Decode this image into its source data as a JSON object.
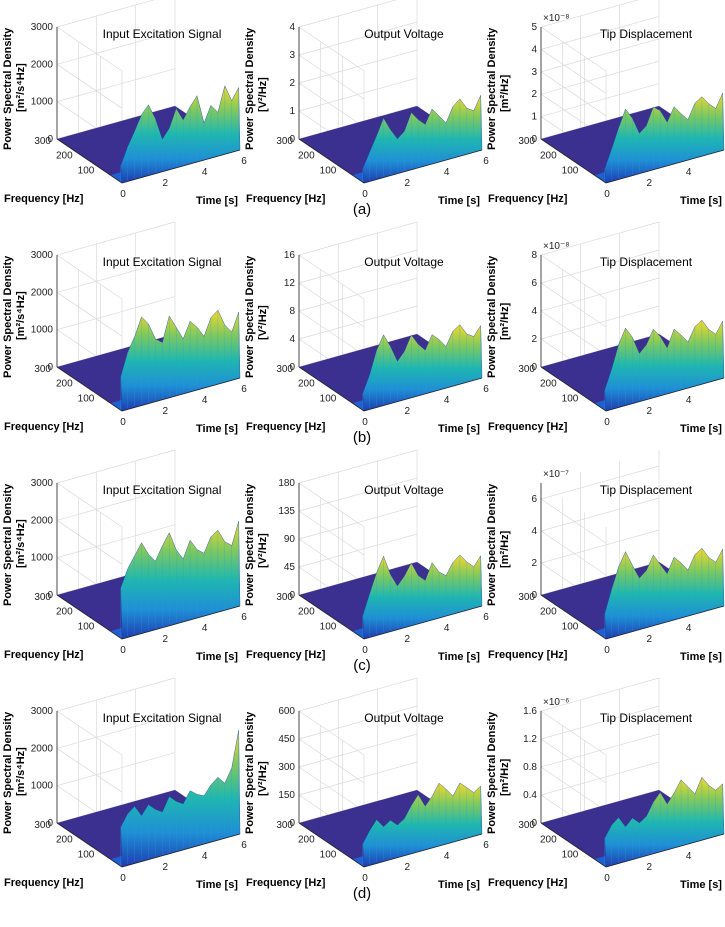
{
  "figure": {
    "panels": [
      {
        "caption": "(a)",
        "charts": [
          {
            "title": "Input Excitation Signal",
            "ylabel_line1": "Power Spectral Density",
            "ylabel_line2": "[m²/s⁴Hz]",
            "multiplier": "",
            "zticks": [
              "0",
              "1000",
              "2000",
              "3000"
            ],
            "zmax": 3000,
            "xlim": [
              0,
              6
            ],
            "ylim": [
              0,
              300
            ],
            "xticks": [
              "2",
              "4",
              "6"
            ],
            "yticks": [
              "0",
              "100",
              "200",
              "300"
            ],
            "xlabel": "Time [s]",
            "ylabel_freq": "Frequency [Hz]",
            "signal_start": 0.0,
            "peaks": [
              0.15,
              0.3,
              0.42,
              0.55,
              0.62,
              0.48,
              0.28,
              0.36,
              0.52,
              0.4,
              0.5,
              0.58,
              0.32,
              0.46,
              0.38,
              0.6,
              0.45,
              0.55
            ]
          },
          {
            "title": "Output Voltage",
            "ylabel_line1": "Power Spectral Density",
            "ylabel_line2": "[V²/Hz]",
            "multiplier": "",
            "zticks": [
              "0",
              "1",
              "2",
              "3",
              "4"
            ],
            "zmax": 4,
            "xlim": [
              0,
              6
            ],
            "ylim": [
              0,
              300
            ],
            "xticks": [
              "2",
              "4",
              "6"
            ],
            "yticks": [
              "0",
              "100",
              "200",
              "300"
            ],
            "xlabel": "Time [s]",
            "ylabel_freq": "Frequency [Hz]",
            "signal_start": 0.0,
            "peaks": [
              0.12,
              0.25,
              0.38,
              0.52,
              0.4,
              0.3,
              0.35,
              0.5,
              0.42,
              0.36,
              0.48,
              0.4,
              0.32,
              0.45,
              0.5,
              0.4,
              0.36,
              0.48
            ]
          },
          {
            "title": "Tip Displacement",
            "ylabel_line1": "Power Spectral Density",
            "ylabel_line2": "[m²/Hz]",
            "multiplier": "×10⁻⁸",
            "zticks": [
              "0",
              "1",
              "2",
              "3",
              "4",
              "5"
            ],
            "zmax": 5,
            "xlim": [
              0,
              6
            ],
            "ylim": [
              0,
              300
            ],
            "xticks": [
              "2",
              "4",
              "6"
            ],
            "yticks": [
              "0",
              "100",
              "200",
              "300"
            ],
            "xlabel": "Time [s]",
            "ylabel_freq": "Frequency [Hz]",
            "signal_start": 0.0,
            "peaks": [
              0.12,
              0.28,
              0.45,
              0.6,
              0.5,
              0.35,
              0.4,
              0.55,
              0.5,
              0.38,
              0.5,
              0.42,
              0.35,
              0.48,
              0.52,
              0.44,
              0.38,
              0.5
            ]
          }
        ]
      },
      {
        "caption": "(b)",
        "charts": [
          {
            "title": "Input Excitation Signal",
            "ylabel_line1": "Power Spectral Density",
            "ylabel_line2": "[m²/s⁴Hz]",
            "multiplier": "",
            "zticks": [
              "0",
              "1000",
              "2000",
              "3000"
            ],
            "zmax": 3000,
            "xlim": [
              0,
              6
            ],
            "ylim": [
              0,
              300
            ],
            "xticks": [
              "2",
              "4",
              "6"
            ],
            "yticks": [
              "0",
              "100",
              "200",
              "300"
            ],
            "xlabel": "Time [s]",
            "ylabel_freq": "Frequency [Hz]",
            "signal_start": 0.0,
            "peaks": [
              0.3,
              0.5,
              0.62,
              0.78,
              0.7,
              0.55,
              0.5,
              0.72,
              0.6,
              0.48,
              0.62,
              0.55,
              0.45,
              0.6,
              0.65,
              0.5,
              0.42,
              0.58
            ]
          },
          {
            "title": "Output Voltage",
            "ylabel_line1": "Power Spectral Density",
            "ylabel_line2": "[V²/Hz]",
            "multiplier": "",
            "zticks": [
              "0",
              "4",
              "8",
              "12",
              "16"
            ],
            "zmax": 16,
            "xlim": [
              0,
              6
            ],
            "ylim": [
              0,
              300
            ],
            "xticks": [
              "2",
              "4",
              "6"
            ],
            "yticks": [
              "0",
              "100",
              "200",
              "300"
            ],
            "xlabel": "Time [s]",
            "ylabel_freq": "Frequency [Hz]",
            "signal_start": 0.0,
            "peaks": [
              0.15,
              0.3,
              0.5,
              0.62,
              0.5,
              0.35,
              0.42,
              0.55,
              0.45,
              0.38,
              0.5,
              0.44,
              0.36,
              0.48,
              0.52,
              0.42,
              0.38,
              0.46
            ]
          },
          {
            "title": "Tip Displacement",
            "ylabel_line1": "Power Spectral Density",
            "ylabel_line2": "[m²/Hz]",
            "multiplier": "×10⁻⁸",
            "zticks": [
              "0",
              "2",
              "4",
              "6",
              "8"
            ],
            "zmax": 8,
            "xlim": [
              0,
              6
            ],
            "ylim": [
              0,
              300
            ],
            "xticks": [
              "2",
              "4",
              "6"
            ],
            "yticks": [
              "0",
              "100",
              "200",
              "300"
            ],
            "xlabel": "Time [s]",
            "ylabel_freq": "Frequency [Hz]",
            "signal_start": 0.0,
            "peaks": [
              0.18,
              0.35,
              0.55,
              0.68,
              0.58,
              0.42,
              0.48,
              0.6,
              0.52,
              0.4,
              0.55,
              0.48,
              0.4,
              0.52,
              0.56,
              0.46,
              0.4,
              0.5
            ]
          }
        ]
      },
      {
        "caption": "(c)",
        "charts": [
          {
            "title": "Input Excitation Signal",
            "ylabel_line1": "Power Spectral Density",
            "ylabel_line2": "[m²/s⁴Hz]",
            "multiplier": "",
            "zticks": [
              "0",
              "1000",
              "2000",
              "3000"
            ],
            "zmax": 3000,
            "xlim": [
              0,
              6
            ],
            "ylim": [
              0,
              300
            ],
            "xticks": [
              "2",
              "4",
              "6"
            ],
            "yticks": [
              "0",
              "100",
              "200",
              "300"
            ],
            "xlabel": "Time [s]",
            "ylabel_freq": "Frequency [Hz]",
            "signal_start": 0.0,
            "peaks": [
              0.45,
              0.6,
              0.7,
              0.8,
              0.68,
              0.6,
              0.72,
              0.82,
              0.65,
              0.55,
              0.7,
              0.6,
              0.55,
              0.68,
              0.72,
              0.6,
              0.55,
              0.75
            ]
          },
          {
            "title": "Output Voltage",
            "ylabel_line1": "Power Spectral Density",
            "ylabel_line2": "[V²/Hz]",
            "multiplier": "",
            "zticks": [
              "0",
              "45",
              "90",
              "135",
              "180"
            ],
            "zmax": 180,
            "xlim": [
              0,
              6
            ],
            "ylim": [
              0,
              300
            ],
            "xticks": [
              "2",
              "4",
              "6"
            ],
            "yticks": [
              "0",
              "100",
              "200",
              "300"
            ],
            "xlabel": "Time [s]",
            "ylabel_freq": "Frequency [Hz]",
            "signal_start": 0.0,
            "peaks": [
              0.2,
              0.38,
              0.55,
              0.68,
              0.5,
              0.38,
              0.45,
              0.55,
              0.42,
              0.36,
              0.5,
              0.4,
              0.35,
              0.45,
              0.5,
              0.42,
              0.36,
              0.44
            ]
          },
          {
            "title": "Tip Displacement",
            "ylabel_line1": "Power Spectral Density",
            "ylabel_line2": "[m²/Hz]",
            "multiplier": "×10⁻⁷",
            "zticks": [
              "0",
              "2",
              "4",
              "6"
            ],
            "zmax": 7,
            "xlim": [
              0,
              6
            ],
            "ylim": [
              0,
              300
            ],
            "xticks": [
              "2",
              "4",
              "6"
            ],
            "yticks": [
              "0",
              "100",
              "200",
              "300"
            ],
            "xlabel": "Time [s]",
            "ylabel_freq": "Frequency [Hz]",
            "signal_start": 0.0,
            "peaks": [
              0.22,
              0.42,
              0.6,
              0.72,
              0.58,
              0.45,
              0.5,
              0.62,
              0.52,
              0.42,
              0.55,
              0.48,
              0.4,
              0.52,
              0.56,
              0.46,
              0.4,
              0.5
            ]
          }
        ]
      },
      {
        "caption": "(d)",
        "charts": [
          {
            "title": "Input Excitation Signal",
            "ylabel_line1": "Power Spectral Density",
            "ylabel_line2": "[m²/s⁴Hz]",
            "multiplier": "",
            "zticks": [
              "0",
              "1000",
              "2000",
              "3000"
            ],
            "zmax": 3000,
            "xlim": [
              0,
              6
            ],
            "ylim": [
              0,
              300
            ],
            "xticks": [
              "2",
              "4",
              "6"
            ],
            "yticks": [
              "0",
              "100",
              "200",
              "300"
            ],
            "xlabel": "Time [s]",
            "ylabel_freq": "Frequency [Hz]",
            "signal_start": 0.0,
            "peaks": [
              0.35,
              0.45,
              0.5,
              0.4,
              0.48,
              0.42,
              0.38,
              0.5,
              0.44,
              0.4,
              0.5,
              0.45,
              0.42,
              0.5,
              0.55,
              0.48,
              0.6,
              0.92
            ]
          },
          {
            "title": "Output Voltage",
            "ylabel_line1": "Power Spectral Density",
            "ylabel_line2": "[V²/Hz]",
            "multiplier": "",
            "zticks": [
              "0",
              "150",
              "300",
              "450",
              "600"
            ],
            "zmax": 600,
            "xlim": [
              0,
              6
            ],
            "ylim": [
              0,
              300
            ],
            "xticks": [
              "2",
              "4",
              "6"
            ],
            "yticks": [
              "0",
              "100",
              "200",
              "300"
            ],
            "xlabel": "Time [s]",
            "ylabel_freq": "Frequency [Hz]",
            "signal_start": 0.0,
            "peaks": [
              0.2,
              0.3,
              0.38,
              0.3,
              0.34,
              0.28,
              0.32,
              0.42,
              0.5,
              0.38,
              0.45,
              0.55,
              0.48,
              0.4,
              0.5,
              0.44,
              0.38,
              0.42
            ]
          },
          {
            "title": "Tip Displacement",
            "ylabel_line1": "Power Spectral Density",
            "ylabel_line2": "[m²/Hz]",
            "multiplier": "×10⁻⁶",
            "zticks": [
              "0",
              "0.4",
              "0.8",
              "1.2",
              "1.6"
            ],
            "zmax": 1.6,
            "xlim": [
              0,
              6
            ],
            "ylim": [
              0,
              300
            ],
            "xticks": [
              "2",
              "4",
              "6"
            ],
            "yticks": [
              "0",
              "100",
              "200",
              "300"
            ],
            "xlabel": "Time [s]",
            "ylabel_freq": "Frequency [Hz]",
            "signal_start": 0.0,
            "peaks": [
              0.25,
              0.35,
              0.4,
              0.3,
              0.36,
              0.3,
              0.34,
              0.45,
              0.52,
              0.4,
              0.48,
              0.58,
              0.5,
              0.42,
              0.55,
              0.46,
              0.4,
              0.44
            ]
          }
        ]
      }
    ]
  },
  "chart_data": [
    {
      "type": "surface",
      "panel": "a",
      "title": "Input Excitation Signal",
      "xlabel": "Time [s]",
      "ylabel": "Frequency [Hz]",
      "zlabel": "Power Spectral Density [m²/s⁴Hz]",
      "xlim": [
        0,
        6
      ],
      "ylim": [
        0,
        300
      ],
      "zlim": [
        0,
        3000
      ]
    },
    {
      "type": "surface",
      "panel": "a",
      "title": "Output Voltage",
      "xlabel": "Time [s]",
      "ylabel": "Frequency [Hz]",
      "zlabel": "Power Spectral Density [V²/Hz]",
      "xlim": [
        0,
        6
      ],
      "ylim": [
        0,
        300
      ],
      "zlim": [
        0,
        4
      ]
    },
    {
      "type": "surface",
      "panel": "a",
      "title": "Tip Displacement",
      "xlabel": "Time [s]",
      "ylabel": "Frequency [Hz]",
      "zlabel": "Power Spectral Density [m²/Hz] ×10⁻⁸",
      "xlim": [
        0,
        6
      ],
      "ylim": [
        0,
        300
      ],
      "zlim": [
        0,
        5
      ]
    },
    {
      "type": "surface",
      "panel": "b",
      "title": "Input Excitation Signal",
      "zlim": [
        0,
        3000
      ]
    },
    {
      "type": "surface",
      "panel": "b",
      "title": "Output Voltage",
      "zlim": [
        0,
        16
      ]
    },
    {
      "type": "surface",
      "panel": "b",
      "title": "Tip Displacement",
      "zlim": [
        0,
        8
      ],
      "scale": "×10⁻⁸"
    },
    {
      "type": "surface",
      "panel": "c",
      "title": "Input Excitation Signal",
      "zlim": [
        0,
        3000
      ]
    },
    {
      "type": "surface",
      "panel": "c",
      "title": "Output Voltage",
      "zlim": [
        0,
        180
      ]
    },
    {
      "type": "surface",
      "panel": "c",
      "title": "Tip Displacement",
      "zlim": [
        0,
        7
      ],
      "scale": "×10⁻⁷"
    },
    {
      "type": "surface",
      "panel": "d",
      "title": "Input Excitation Signal",
      "zlim": [
        0,
        3000
      ]
    },
    {
      "type": "surface",
      "panel": "d",
      "title": "Output Voltage",
      "zlim": [
        0,
        600
      ]
    },
    {
      "type": "surface",
      "panel": "d",
      "title": "Tip Displacement",
      "zlim": [
        0,
        1.6
      ],
      "scale": "×10⁻⁶"
    }
  ]
}
